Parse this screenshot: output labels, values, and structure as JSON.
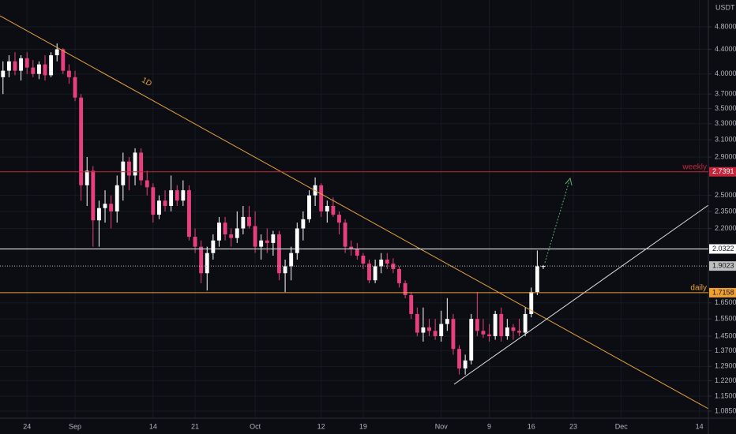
{
  "chart_data": {
    "type": "candlestick",
    "currency": "USDT",
    "annotation": "1D",
    "log_scale": true,
    "grid": true,
    "up_color": "#ffffff",
    "down_color": "#e8407e",
    "categories": [
      null,
      null,
      null,
      null,
      "24",
      null,
      null,
      null,
      null,
      null,
      null,
      null,
      "Sep",
      null,
      null,
      null,
      null,
      null,
      null,
      null,
      null,
      null,
      null,
      null,
      null,
      "14",
      null,
      null,
      null,
      null,
      null,
      null,
      "21",
      null,
      null,
      null,
      null,
      null,
      null,
      null,
      null,
      null,
      "Oct",
      null,
      null,
      null,
      null,
      null,
      null,
      null,
      null,
      null,
      null,
      "12",
      null,
      null,
      null,
      null,
      null,
      null,
      "19",
      null,
      null,
      null,
      null,
      null,
      null,
      null,
      null,
      null,
      null,
      null,
      null,
      "Nov",
      null,
      null,
      null,
      null,
      null,
      null,
      null,
      "9",
      null,
      null,
      null,
      null,
      null,
      null,
      "16",
      null,
      null,
      null,
      null,
      null,
      null,
      "23",
      null,
      null,
      null,
      null,
      null,
      null,
      null,
      "Dec",
      null,
      null,
      null,
      null,
      null,
      null,
      null,
      null,
      null,
      null,
      null,
      null,
      "14",
      null
    ],
    "open": [
      3.95,
      4.05,
      4.2,
      4.05,
      4.25,
      4.1,
      4.0,
      4.15,
      3.98,
      4.3,
      4.4,
      4.05,
      3.95,
      3.65,
      2.6,
      2.75,
      2.27,
      2.38,
      2.42,
      2.35,
      2.6,
      2.85,
      2.7,
      2.95,
      2.65,
      2.58,
      2.32,
      2.45,
      2.4,
      2.55,
      2.45,
      2.55,
      2.13,
      2.05,
      1.85,
      2.0,
      2.1,
      2.25,
      2.15,
      2.12,
      2.2,
      2.3,
      2.22,
      2.05,
      2.1,
      2.08,
      2.15,
      1.85,
      1.9,
      2.0,
      2.2,
      2.28,
      2.5,
      2.6,
      2.35,
      2.4,
      2.32,
      2.25,
      2.05,
      2.03,
      1.98,
      1.92,
      1.8,
      1.9,
      1.95,
      1.92,
      1.88,
      1.78,
      1.7,
      1.58,
      1.47,
      1.5,
      1.48,
      1.45,
      1.52,
      1.55,
      1.38,
      1.28,
      1.32,
      1.55,
      1.48,
      1.46,
      1.45,
      1.58,
      1.45,
      1.5,
      1.48,
      1.47,
      1.58,
      1.72,
      1.9,
      null,
      null,
      null,
      null,
      null,
      null,
      null,
      null,
      null,
      null,
      null,
      null,
      null,
      null,
      null,
      null,
      null,
      null,
      null,
      null,
      null,
      null,
      null,
      null,
      null,
      null,
      null
    ],
    "high": [
      4.2,
      4.3,
      4.35,
      4.3,
      4.35,
      4.22,
      4.2,
      4.3,
      4.35,
      4.5,
      4.42,
      4.15,
      4.05,
      3.7,
      2.9,
      2.8,
      2.45,
      2.55,
      2.5,
      2.7,
      2.95,
      2.9,
      3.0,
      3.0,
      2.75,
      2.62,
      2.5,
      2.55,
      2.7,
      2.6,
      2.65,
      2.6,
      2.2,
      2.1,
      2.05,
      2.15,
      2.3,
      2.3,
      2.2,
      2.35,
      2.4,
      2.4,
      2.35,
      2.15,
      2.2,
      2.18,
      2.18,
      1.95,
      2.05,
      2.25,
      2.35,
      2.55,
      2.68,
      2.62,
      2.45,
      2.48,
      2.35,
      2.28,
      2.1,
      2.08,
      2.0,
      1.95,
      1.95,
      2.0,
      2.0,
      1.96,
      1.9,
      1.8,
      1.72,
      1.62,
      1.62,
      1.55,
      1.55,
      1.6,
      1.68,
      1.58,
      1.4,
      1.35,
      1.58,
      1.72,
      1.55,
      1.52,
      1.6,
      1.62,
      1.55,
      1.52,
      1.55,
      1.62,
      1.75,
      2.02,
      1.91,
      null,
      null,
      null,
      null,
      null,
      null,
      null,
      null,
      null,
      null,
      null,
      null,
      null,
      null,
      null,
      null,
      null,
      null,
      null,
      null,
      null,
      null,
      null,
      null,
      null,
      null,
      null
    ],
    "low": [
      3.7,
      3.95,
      3.98,
      3.9,
      4.0,
      3.95,
      3.92,
      3.9,
      3.95,
      4.2,
      4.0,
      3.85,
      3.6,
      2.45,
      2.4,
      2.05,
      2.05,
      2.25,
      2.2,
      2.25,
      2.45,
      2.55,
      2.6,
      2.6,
      2.5,
      2.25,
      2.28,
      2.35,
      2.35,
      2.4,
      2.4,
      2.1,
      2.0,
      1.78,
      1.73,
      1.95,
      2.05,
      2.1,
      2.05,
      2.08,
      2.15,
      2.2,
      2.0,
      1.95,
      2.0,
      1.98,
      1.8,
      1.72,
      1.8,
      1.95,
      2.1,
      2.25,
      2.4,
      2.3,
      2.25,
      2.3,
      2.15,
      2.0,
      1.98,
      1.95,
      1.88,
      1.78,
      1.78,
      1.85,
      1.88,
      1.85,
      1.75,
      1.68,
      1.55,
      1.45,
      1.42,
      1.45,
      1.43,
      1.42,
      1.48,
      1.35,
      1.25,
      1.25,
      1.3,
      1.45,
      1.44,
      1.42,
      1.43,
      1.42,
      1.43,
      1.43,
      1.45,
      1.45,
      1.56,
      1.7,
      1.88,
      null,
      null,
      null,
      null,
      null,
      null,
      null,
      null,
      null,
      null,
      null,
      null,
      null,
      null,
      null,
      null,
      null,
      null,
      null,
      null,
      null,
      null,
      null,
      null,
      null,
      null,
      null
    ],
    "close": [
      4.05,
      4.2,
      4.05,
      4.25,
      4.1,
      4.0,
      4.15,
      3.98,
      4.3,
      4.4,
      4.05,
      3.95,
      3.65,
      2.6,
      2.75,
      2.27,
      2.38,
      2.42,
      2.35,
      2.6,
      2.85,
      2.7,
      2.95,
      2.65,
      2.58,
      2.32,
      2.45,
      2.4,
      2.55,
      2.45,
      2.55,
      2.13,
      2.05,
      1.85,
      2.0,
      2.1,
      2.25,
      2.15,
      2.12,
      2.2,
      2.3,
      2.22,
      2.05,
      2.1,
      2.08,
      2.15,
      1.85,
      1.9,
      2.0,
      2.2,
      2.28,
      2.5,
      2.6,
      2.35,
      2.4,
      2.32,
      2.25,
      2.05,
      2.03,
      1.98,
      1.92,
      1.8,
      1.9,
      1.95,
      1.92,
      1.88,
      1.78,
      1.7,
      1.58,
      1.47,
      1.5,
      1.48,
      1.45,
      1.52,
      1.55,
      1.38,
      1.28,
      1.32,
      1.55,
      1.48,
      1.46,
      1.45,
      1.58,
      1.45,
      1.5,
      1.48,
      1.47,
      1.58,
      1.72,
      1.9,
      1.9023,
      null,
      null,
      null,
      null,
      null,
      null,
      null,
      null,
      null,
      null,
      null,
      null,
      null,
      null,
      null,
      null,
      null,
      null,
      null,
      null,
      null,
      null,
      null,
      null,
      null,
      null,
      null
    ],
    "ylim": [
      1.0556,
      5.325
    ],
    "yticks": [
      {
        "value": 4.8,
        "label": "4.8000"
      },
      {
        "value": 4.4,
        "label": "4.4000"
      },
      {
        "value": 4.0,
        "label": "4.0000"
      },
      {
        "value": 3.7,
        "label": "3.7000"
      },
      {
        "value": 3.5,
        "label": "3.5000"
      },
      {
        "value": 3.3,
        "label": "3.3000"
      },
      {
        "value": 3.1,
        "label": "3.1000"
      },
      {
        "value": 2.9,
        "label": "2.9000"
      },
      {
        "value": 2.5,
        "label": "2.5000"
      },
      {
        "value": 2.35,
        "label": "2.3500"
      },
      {
        "value": 2.2,
        "label": "2.2000"
      },
      {
        "value": 1.65,
        "label": "1.6500"
      },
      {
        "value": 1.55,
        "label": "1.5500"
      },
      {
        "value": 1.45,
        "label": "1.4500"
      },
      {
        "value": 1.37,
        "label": "1.3700"
      },
      {
        "value": 1.29,
        "label": "1.2900"
      },
      {
        "value": 1.22,
        "label": "1.2200"
      },
      {
        "value": 1.15,
        "label": "1.1500"
      },
      {
        "value": 1.085,
        "label": "1.0850"
      }
    ],
    "levels": [
      {
        "name": "weekly",
        "value": 2.7391,
        "color": "#c2263a"
      },
      {
        "value": 2.0322,
        "color": "#ffffff"
      },
      {
        "value": 1.9023,
        "color": "#bfbfbf"
      },
      {
        "name": "daily",
        "value": 1.7158,
        "color": "#f0a030"
      }
    ]
  }
}
